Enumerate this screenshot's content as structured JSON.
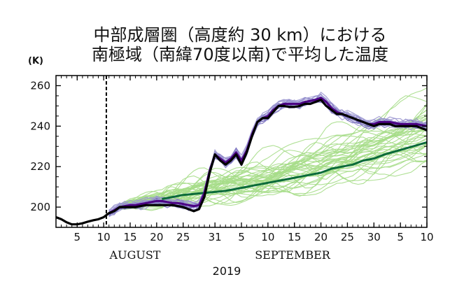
{
  "chart_data": {
    "type": "line",
    "title_lines": [
      "中部成層圏（高度約 30 km）における",
      "南極域（南緯70度以南)で平均した温度"
    ],
    "ylabel": "(K)",
    "ylim": [
      190,
      265
    ],
    "yticks": [
      200,
      220,
      240,
      260
    ],
    "xlim": [
      0,
      70
    ],
    "xticks": [
      {
        "x": 4,
        "label": "5"
      },
      {
        "x": 9,
        "label": "10"
      },
      {
        "x": 14,
        "label": "15"
      },
      {
        "x": 19,
        "label": "20"
      },
      {
        "x": 24,
        "label": "25"
      },
      {
        "x": 30,
        "label": "31"
      },
      {
        "x": 35,
        "label": "5"
      },
      {
        "x": 40,
        "label": "10"
      },
      {
        "x": 45,
        "label": "15"
      },
      {
        "x": 50,
        "label": "20"
      },
      {
        "x": 55,
        "label": "25"
      },
      {
        "x": 60,
        "label": "30"
      },
      {
        "x": 65,
        "label": "5"
      },
      {
        "x": 70,
        "label": "10"
      }
    ],
    "month_labels": [
      {
        "x": 15,
        "label": "AUGUST"
      },
      {
        "x": 48,
        "label": "SEPTEMBER"
      }
    ],
    "year_label": "2019",
    "vline": {
      "x": 9.5,
      "style": "dashed"
    },
    "grid": false,
    "colors": {
      "observed": "#000000",
      "forecast_early_mean": "#4b0082",
      "forecast_early_members": "#9a95d0",
      "forecast_early_members_edge": "#6e64b8",
      "forecast_late_mean": "#0b6b3a",
      "forecast_late_members": "#a6dd88"
    },
    "series": [
      {
        "role": "observed",
        "x": [
          0,
          1,
          2,
          3,
          4,
          5,
          6,
          7,
          8,
          9,
          10,
          11,
          12,
          13,
          14,
          15,
          16,
          17,
          18,
          19,
          20,
          21,
          22,
          23,
          24,
          25,
          26,
          27,
          28,
          29,
          30,
          31,
          32,
          33,
          34,
          35,
          36,
          37,
          38,
          39,
          40,
          41,
          42,
          43,
          44,
          45,
          46,
          47,
          48,
          49,
          50,
          51,
          52,
          53,
          54,
          55,
          56,
          57,
          58,
          59,
          60,
          61,
          62,
          63,
          64,
          65,
          66,
          67,
          68,
          69,
          70
        ],
        "values": [
          195,
          194,
          192.5,
          191.5,
          191.5,
          192,
          192.8,
          193.5,
          194,
          195,
          197,
          198,
          200,
          200,
          200,
          200,
          200.5,
          201,
          201,
          201,
          201,
          201,
          201,
          200.5,
          200,
          199,
          198,
          199,
          205,
          217,
          226,
          223,
          221,
          223,
          226,
          221,
          227,
          235,
          242,
          244,
          244,
          247,
          250,
          250,
          249.5,
          249.5,
          250,
          251,
          251,
          252,
          253,
          250,
          248,
          246,
          246,
          245,
          244,
          243,
          242,
          241,
          240,
          241,
          241,
          241,
          240,
          240,
          240,
          240,
          240,
          239,
          238
        ]
      },
      {
        "role": "forecast_early_mean",
        "x": [
          10,
          11,
          12,
          13,
          14,
          15,
          16,
          17,
          18,
          19,
          20,
          21,
          22,
          23,
          24,
          25,
          26,
          27,
          28,
          29,
          30,
          31,
          32,
          33,
          34,
          35,
          36,
          37,
          38,
          39,
          40,
          41,
          42,
          43,
          44,
          45,
          46,
          47,
          48,
          49,
          50,
          51,
          52,
          53,
          54,
          55,
          56,
          57,
          58,
          59,
          60,
          61,
          62,
          63,
          64,
          65,
          66,
          67,
          68,
          69,
          70
        ],
        "values": [
          197,
          198.5,
          200,
          200.5,
          201,
          201,
          201.5,
          202,
          202.5,
          203,
          203,
          202.5,
          202,
          202,
          201.5,
          201,
          200.5,
          201,
          207,
          218,
          226,
          224,
          222,
          224,
          227,
          223,
          228,
          236,
          242,
          244,
          245,
          248,
          250,
          251,
          251,
          251,
          251,
          252,
          252.5,
          253,
          254,
          252,
          249,
          247,
          246,
          245,
          244,
          243,
          242,
          241,
          241,
          242,
          242,
          242,
          241.5,
          241,
          241,
          241,
          241,
          240.5,
          240
        ]
      },
      {
        "role": "forecast_late_mean",
        "x": [
          20,
          22,
          24,
          26,
          28,
          30,
          32,
          34,
          36,
          38,
          40,
          42,
          44,
          46,
          48,
          50,
          52,
          54,
          56,
          58,
          60,
          62,
          64,
          66,
          68,
          70
        ],
        "values": [
          204,
          205,
          206,
          206.5,
          207,
          207.5,
          208,
          209,
          210,
          211,
          212,
          213,
          214,
          215,
          216,
          217,
          219,
          220,
          221,
          223,
          224,
          226,
          227.5,
          229,
          230.5,
          232
        ]
      }
    ]
  }
}
